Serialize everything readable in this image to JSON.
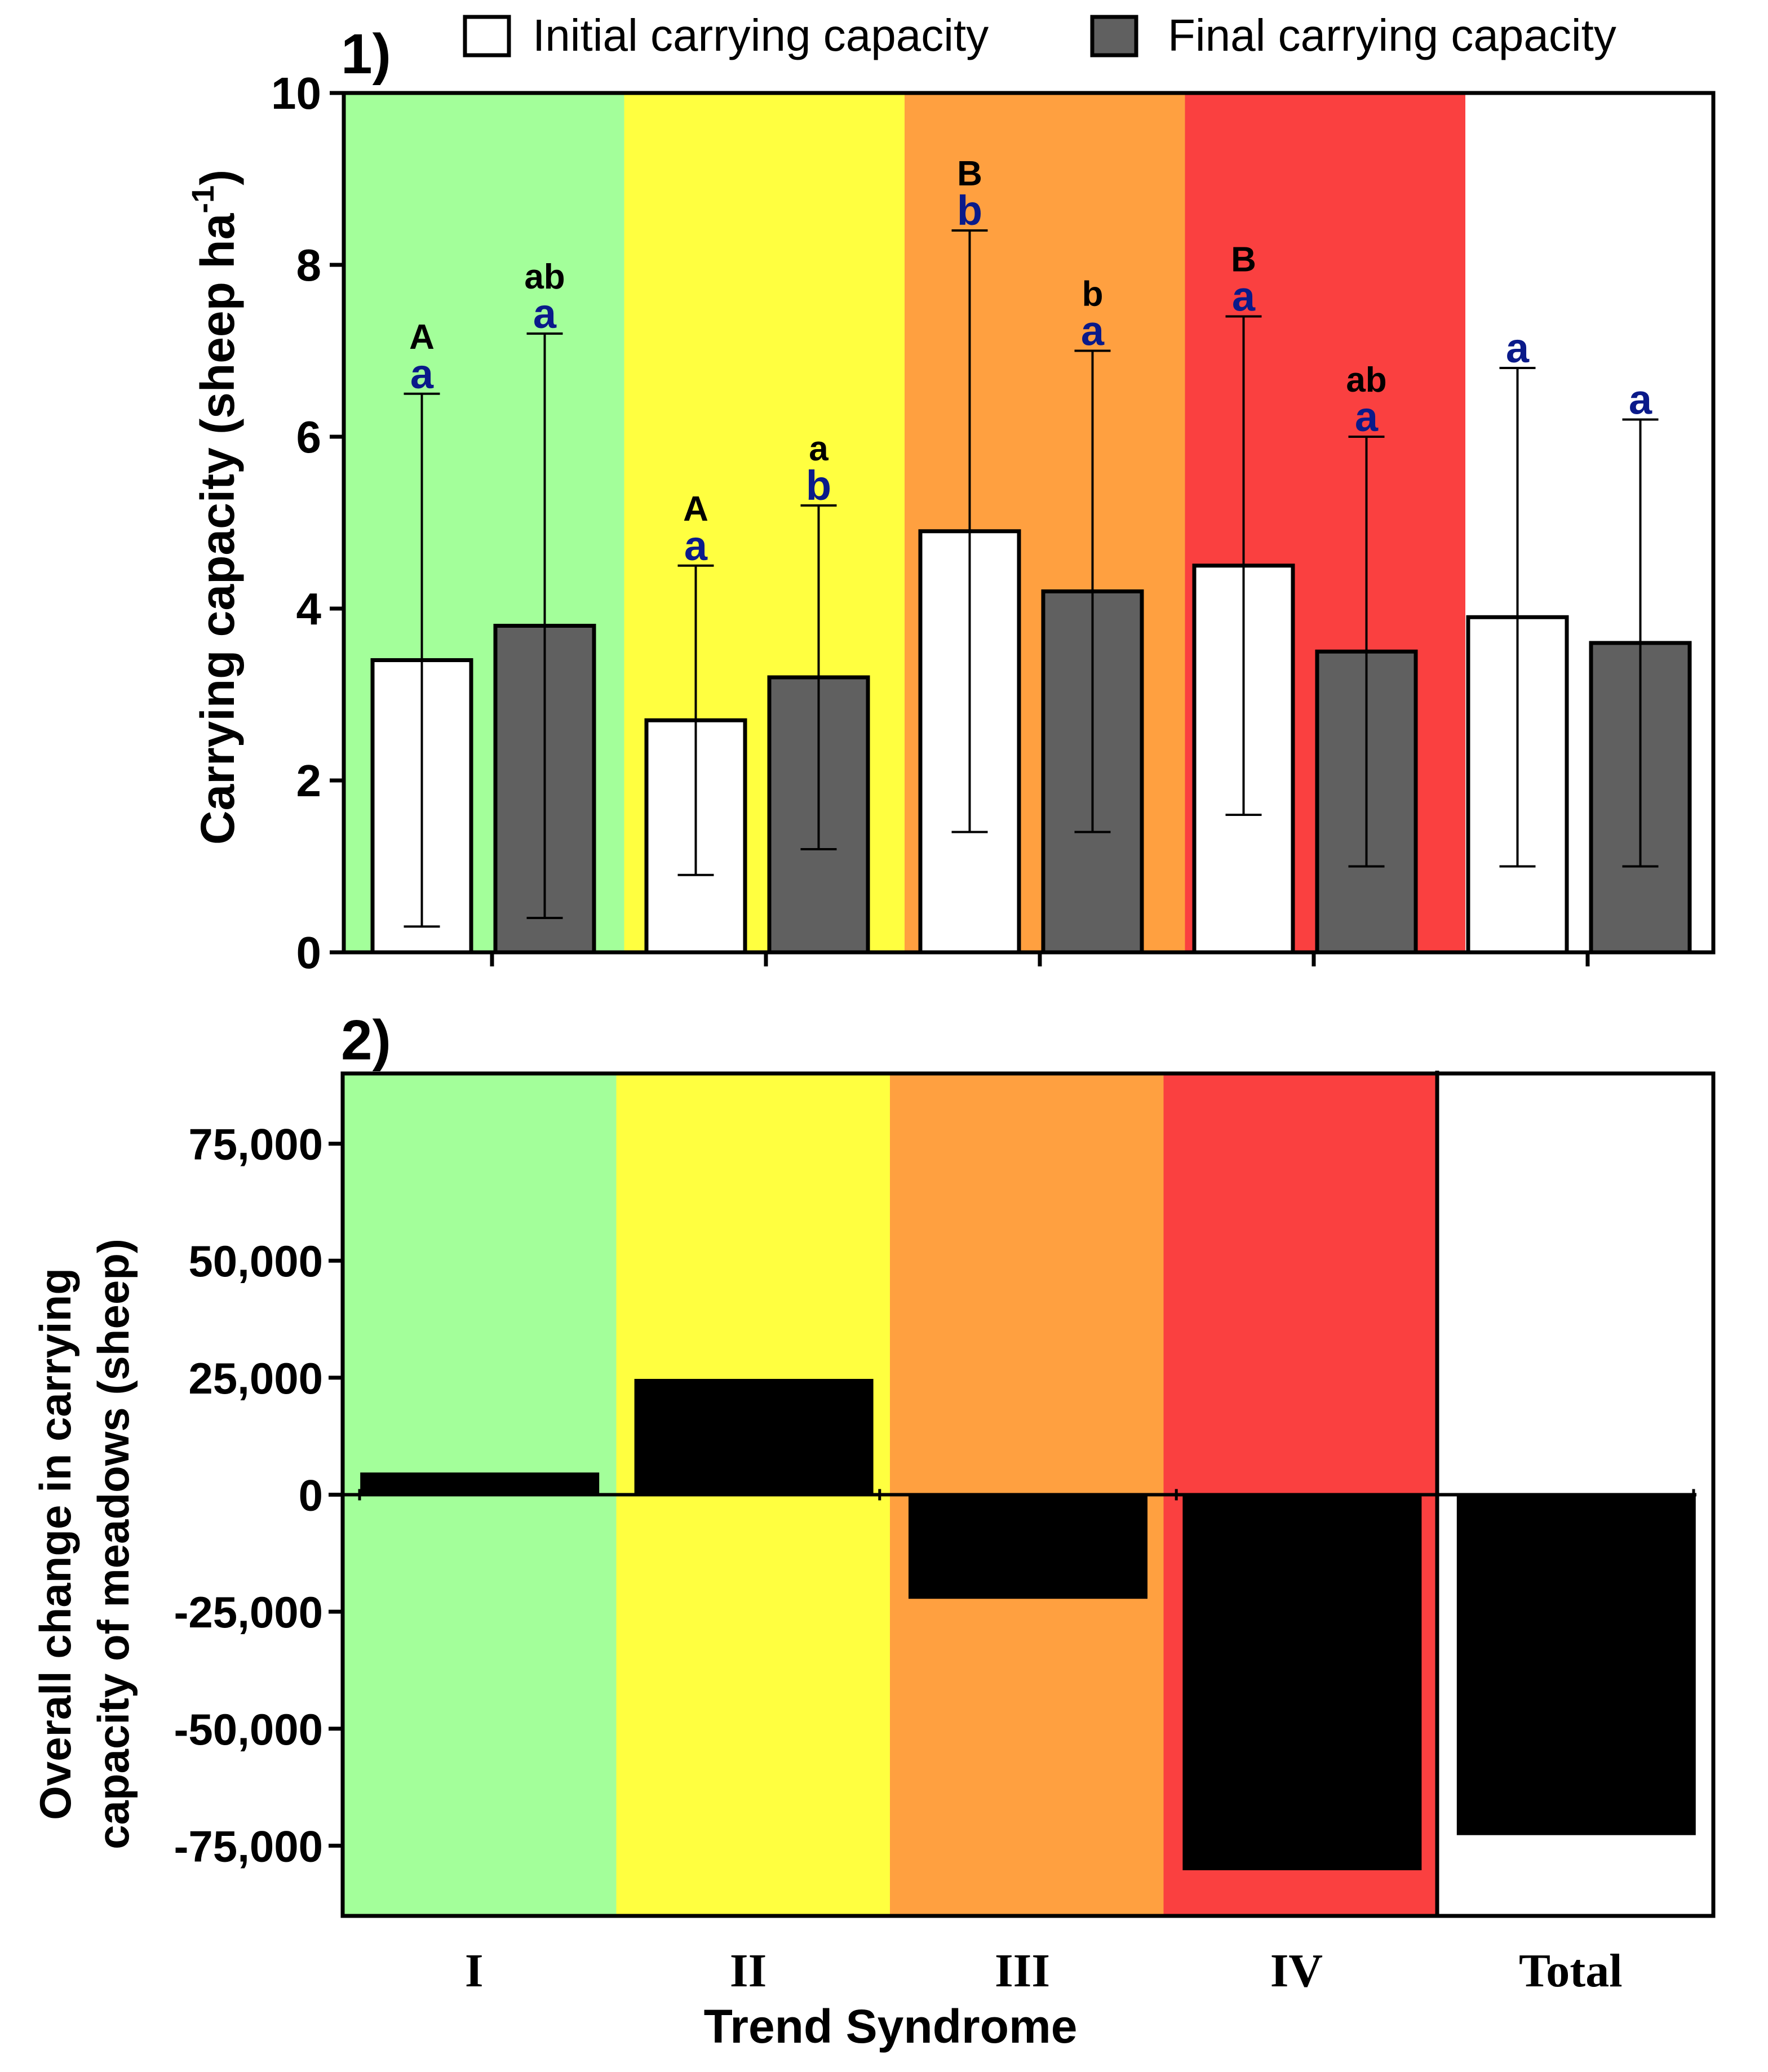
{
  "chart_data": [
    {
      "panel_label": "1)",
      "type": "bar",
      "categories": [
        "I",
        "II",
        "III",
        "IV",
        "Total"
      ],
      "category_colors": [
        "#a3ff9a",
        "#ffff40",
        "#ffa040",
        "#fa4040",
        "#ffffff"
      ],
      "ylabel_main": "Carrying capacity (sheep ha",
      "ylabel_sup": "-1",
      "ylabel_close": ")",
      "ylim": [
        0,
        10
      ],
      "yticks": [
        0,
        2,
        4,
        6,
        8,
        10
      ],
      "legend": [
        {
          "label": "Initial carrying capacity",
          "color": "#ffffff"
        },
        {
          "label": "Final carrying capacity",
          "color": "#606060"
        }
      ],
      "series": [
        {
          "name": "Initial carrying capacity",
          "color": "#ffffff",
          "values": [
            3.4,
            2.7,
            4.9,
            4.5,
            3.9
          ],
          "err_low": [
            0.3,
            0.9,
            1.4,
            1.6,
            1.0
          ],
          "err_high": [
            6.5,
            4.5,
            8.4,
            7.4,
            6.8
          ],
          "letters_upper": [
            "A",
            "A",
            "B",
            "B",
            ""
          ],
          "letters_lower": [
            "a",
            "a",
            "b",
            "a",
            "a"
          ]
        },
        {
          "name": "Final carrying capacity",
          "color": "#606060",
          "values": [
            3.8,
            3.2,
            4.2,
            3.5,
            3.6
          ],
          "err_low": [
            0.4,
            1.2,
            1.4,
            1.0,
            1.0
          ],
          "err_high": [
            7.2,
            5.2,
            7.0,
            6.0,
            6.2
          ],
          "letters_upper": [
            "ab",
            "a",
            "b",
            "ab",
            ""
          ],
          "letters_lower": [
            "a",
            "b",
            "a",
            "a",
            "a"
          ]
        }
      ]
    },
    {
      "panel_label": "2)",
      "type": "bar",
      "categories": [
        "I",
        "II",
        "III",
        "IV",
        "Total"
      ],
      "category_colors": [
        "#a3ff9a",
        "#ffff40",
        "#ffa040",
        "#fa4040",
        "#ffffff"
      ],
      "values": [
        4500,
        24500,
        -22000,
        -80000,
        -72500
      ],
      "bar_color": "#000000",
      "ylabel_line1": "Overall change in carrying",
      "ylabel_line2": "capacity of meadows (sheep)",
      "xlabel": "Trend Syndrome",
      "ylim": [
        -90000,
        90000
      ],
      "yticks": [
        -75000,
        -50000,
        -25000,
        0,
        25000,
        50000,
        75000
      ],
      "ytick_labels": [
        "-75,000",
        "-50,000",
        "-25,000",
        "0",
        "25,000",
        "50,000",
        "75,000"
      ]
    }
  ]
}
